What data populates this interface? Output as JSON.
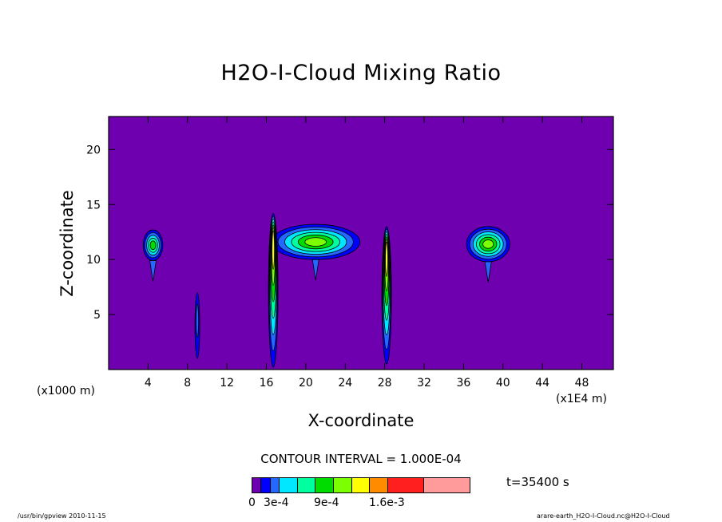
{
  "chart_data": {
    "type": "contour",
    "title": "H2O-I-Cloud Mixing Ratio",
    "xlabel": "X-coordinate",
    "ylabel": "Z-coordinate",
    "x_unit_left": "(x1000 m)",
    "x_unit_right": "(x1E4 m)",
    "xlim": [
      0,
      51.2
    ],
    "ylim": [
      0,
      23
    ],
    "x_ticks": [
      4,
      8,
      12,
      16,
      20,
      24,
      28,
      32,
      36,
      40,
      44,
      48
    ],
    "y_ticks": [
      5,
      10,
      15,
      20
    ],
    "contour_interval": "CONTOUR INTERVAL = 1.000E-04",
    "time": "t=35400 s",
    "background_color": "#6f00b0",
    "colorbar": {
      "colors": [
        "#6f00b0",
        "#0000ff",
        "#2468ff",
        "#00e7ff",
        "#00ff9e",
        "#00dc00",
        "#7cff00",
        "#ffff00",
        "#ff8c00",
        "#ff1f1f",
        "#ff9b9b"
      ],
      "widths": [
        1,
        1,
        1,
        2,
        2,
        2,
        2,
        2,
        2,
        4,
        5
      ],
      "labels": [
        "0",
        "3e-4",
        "9e-4",
        "1.6e-3"
      ]
    },
    "features": [
      {
        "kind": "cloud",
        "cx": 4.5,
        "cz": 11.3,
        "rx": 1.0,
        "rz": 1.4,
        "top_level": 5
      },
      {
        "kind": "cloud",
        "cx": 21.0,
        "cz": 11.6,
        "rx": 4.5,
        "rz": 1.6,
        "top_level": 6
      },
      {
        "kind": "cloud",
        "cx": 38.5,
        "cz": 11.4,
        "rx": 2.2,
        "rz": 1.6,
        "top_level": 6
      },
      {
        "kind": "column",
        "x": 16.7,
        "z0": 0.2,
        "z1": 14.2,
        "top_level": 7
      },
      {
        "kind": "column",
        "x": 28.2,
        "z0": 0.5,
        "z1": 13.0,
        "top_level": 7
      },
      {
        "kind": "streak",
        "x": 9.0,
        "z0": 1.0,
        "z1": 7.0,
        "top_level": 2
      }
    ]
  },
  "footer": {
    "left": "/usr/bin/gpview   2010-11-15",
    "right": "arare-earth_H2O-I-Cloud.nc@H2O-I-Cloud"
  }
}
